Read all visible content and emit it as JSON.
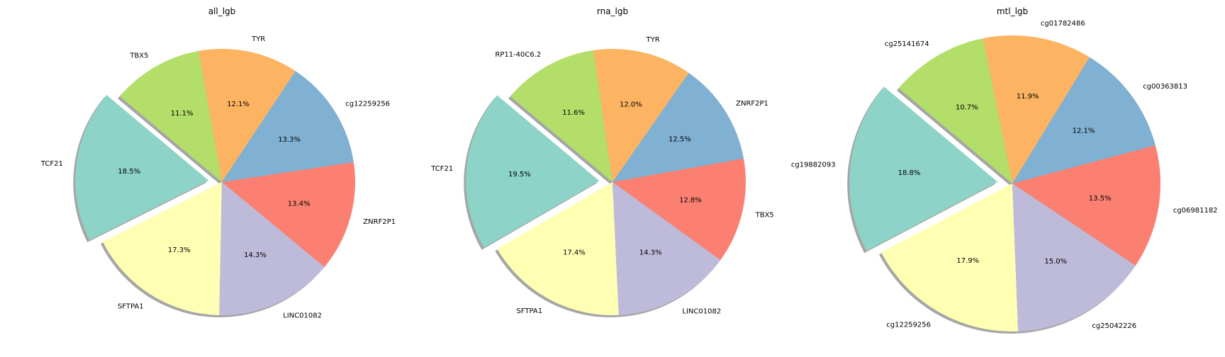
{
  "chart_data": [
    {
      "type": "pie",
      "title": "all_lgb",
      "explode": "TCF21",
      "shadow": true,
      "slices": [
        {
          "label": "TCF21",
          "value": 18.5,
          "pct_text": "18.5%",
          "color": "#8dd3c7"
        },
        {
          "label": "SFTPA1",
          "value": 17.3,
          "pct_text": "17.3%",
          "color": "#ffffb3"
        },
        {
          "label": "LINC01082",
          "value": 14.3,
          "pct_text": "14.3%",
          "color": "#bebada"
        },
        {
          "label": "ZNRF2P1",
          "value": 13.4,
          "pct_text": "13.4%",
          "color": "#fb8072"
        },
        {
          "label": "cg12259256",
          "value": 13.3,
          "pct_text": "13.3%",
          "color": "#80b1d3"
        },
        {
          "label": "TYR",
          "value": 12.1,
          "pct_text": "12.1%",
          "color": "#fdb462"
        },
        {
          "label": "TBX5",
          "value": 11.1,
          "pct_text": "11.1%",
          "color": "#b3de69"
        }
      ]
    },
    {
      "type": "pie",
      "title": "rna_lgb",
      "explode": "TCF21",
      "shadow": true,
      "slices": [
        {
          "label": "TCF21",
          "value": 19.5,
          "pct_text": "19.5%",
          "color": "#8dd3c7"
        },
        {
          "label": "SFTPA1",
          "value": 17.4,
          "pct_text": "17.4%",
          "color": "#ffffb3"
        },
        {
          "label": "LINC01082",
          "value": 14.3,
          "pct_text": "14.3%",
          "color": "#bebada"
        },
        {
          "label": "TBX5",
          "value": 12.8,
          "pct_text": "12.8%",
          "color": "#fb8072"
        },
        {
          "label": "ZNRF2P1",
          "value": 12.5,
          "pct_text": "12.5%",
          "color": "#80b1d3"
        },
        {
          "label": "TYR",
          "value": 12.0,
          "pct_text": "12.0%",
          "color": "#fdb462"
        },
        {
          "label": "RP11-40C6.2",
          "value": 11.6,
          "pct_text": "11.6%",
          "color": "#b3de69"
        }
      ]
    },
    {
      "type": "pie",
      "title": "mtl_lgb",
      "explode": "cg19882093",
      "shadow": true,
      "slices": [
        {
          "label": "cg19882093",
          "value": 18.8,
          "pct_text": "18.8%",
          "color": "#8dd3c7"
        },
        {
          "label": "cg12259256",
          "value": 17.9,
          "pct_text": "17.9%",
          "color": "#ffffb3"
        },
        {
          "label": "cg25042226",
          "value": 15.0,
          "pct_text": "15.0%",
          "color": "#bebada"
        },
        {
          "label": "cg06981182",
          "value": 13.5,
          "pct_text": "13.5%",
          "color": "#fb8072"
        },
        {
          "label": "cg00363813",
          "value": 12.1,
          "pct_text": "12.1%",
          "color": "#80b1d3"
        },
        {
          "label": "cg01782486",
          "value": 11.9,
          "pct_text": "11.9%",
          "color": "#fdb462"
        },
        {
          "label": "cg25141674",
          "value": 10.7,
          "pct_text": "10.7%",
          "color": "#b3de69"
        }
      ]
    }
  ]
}
